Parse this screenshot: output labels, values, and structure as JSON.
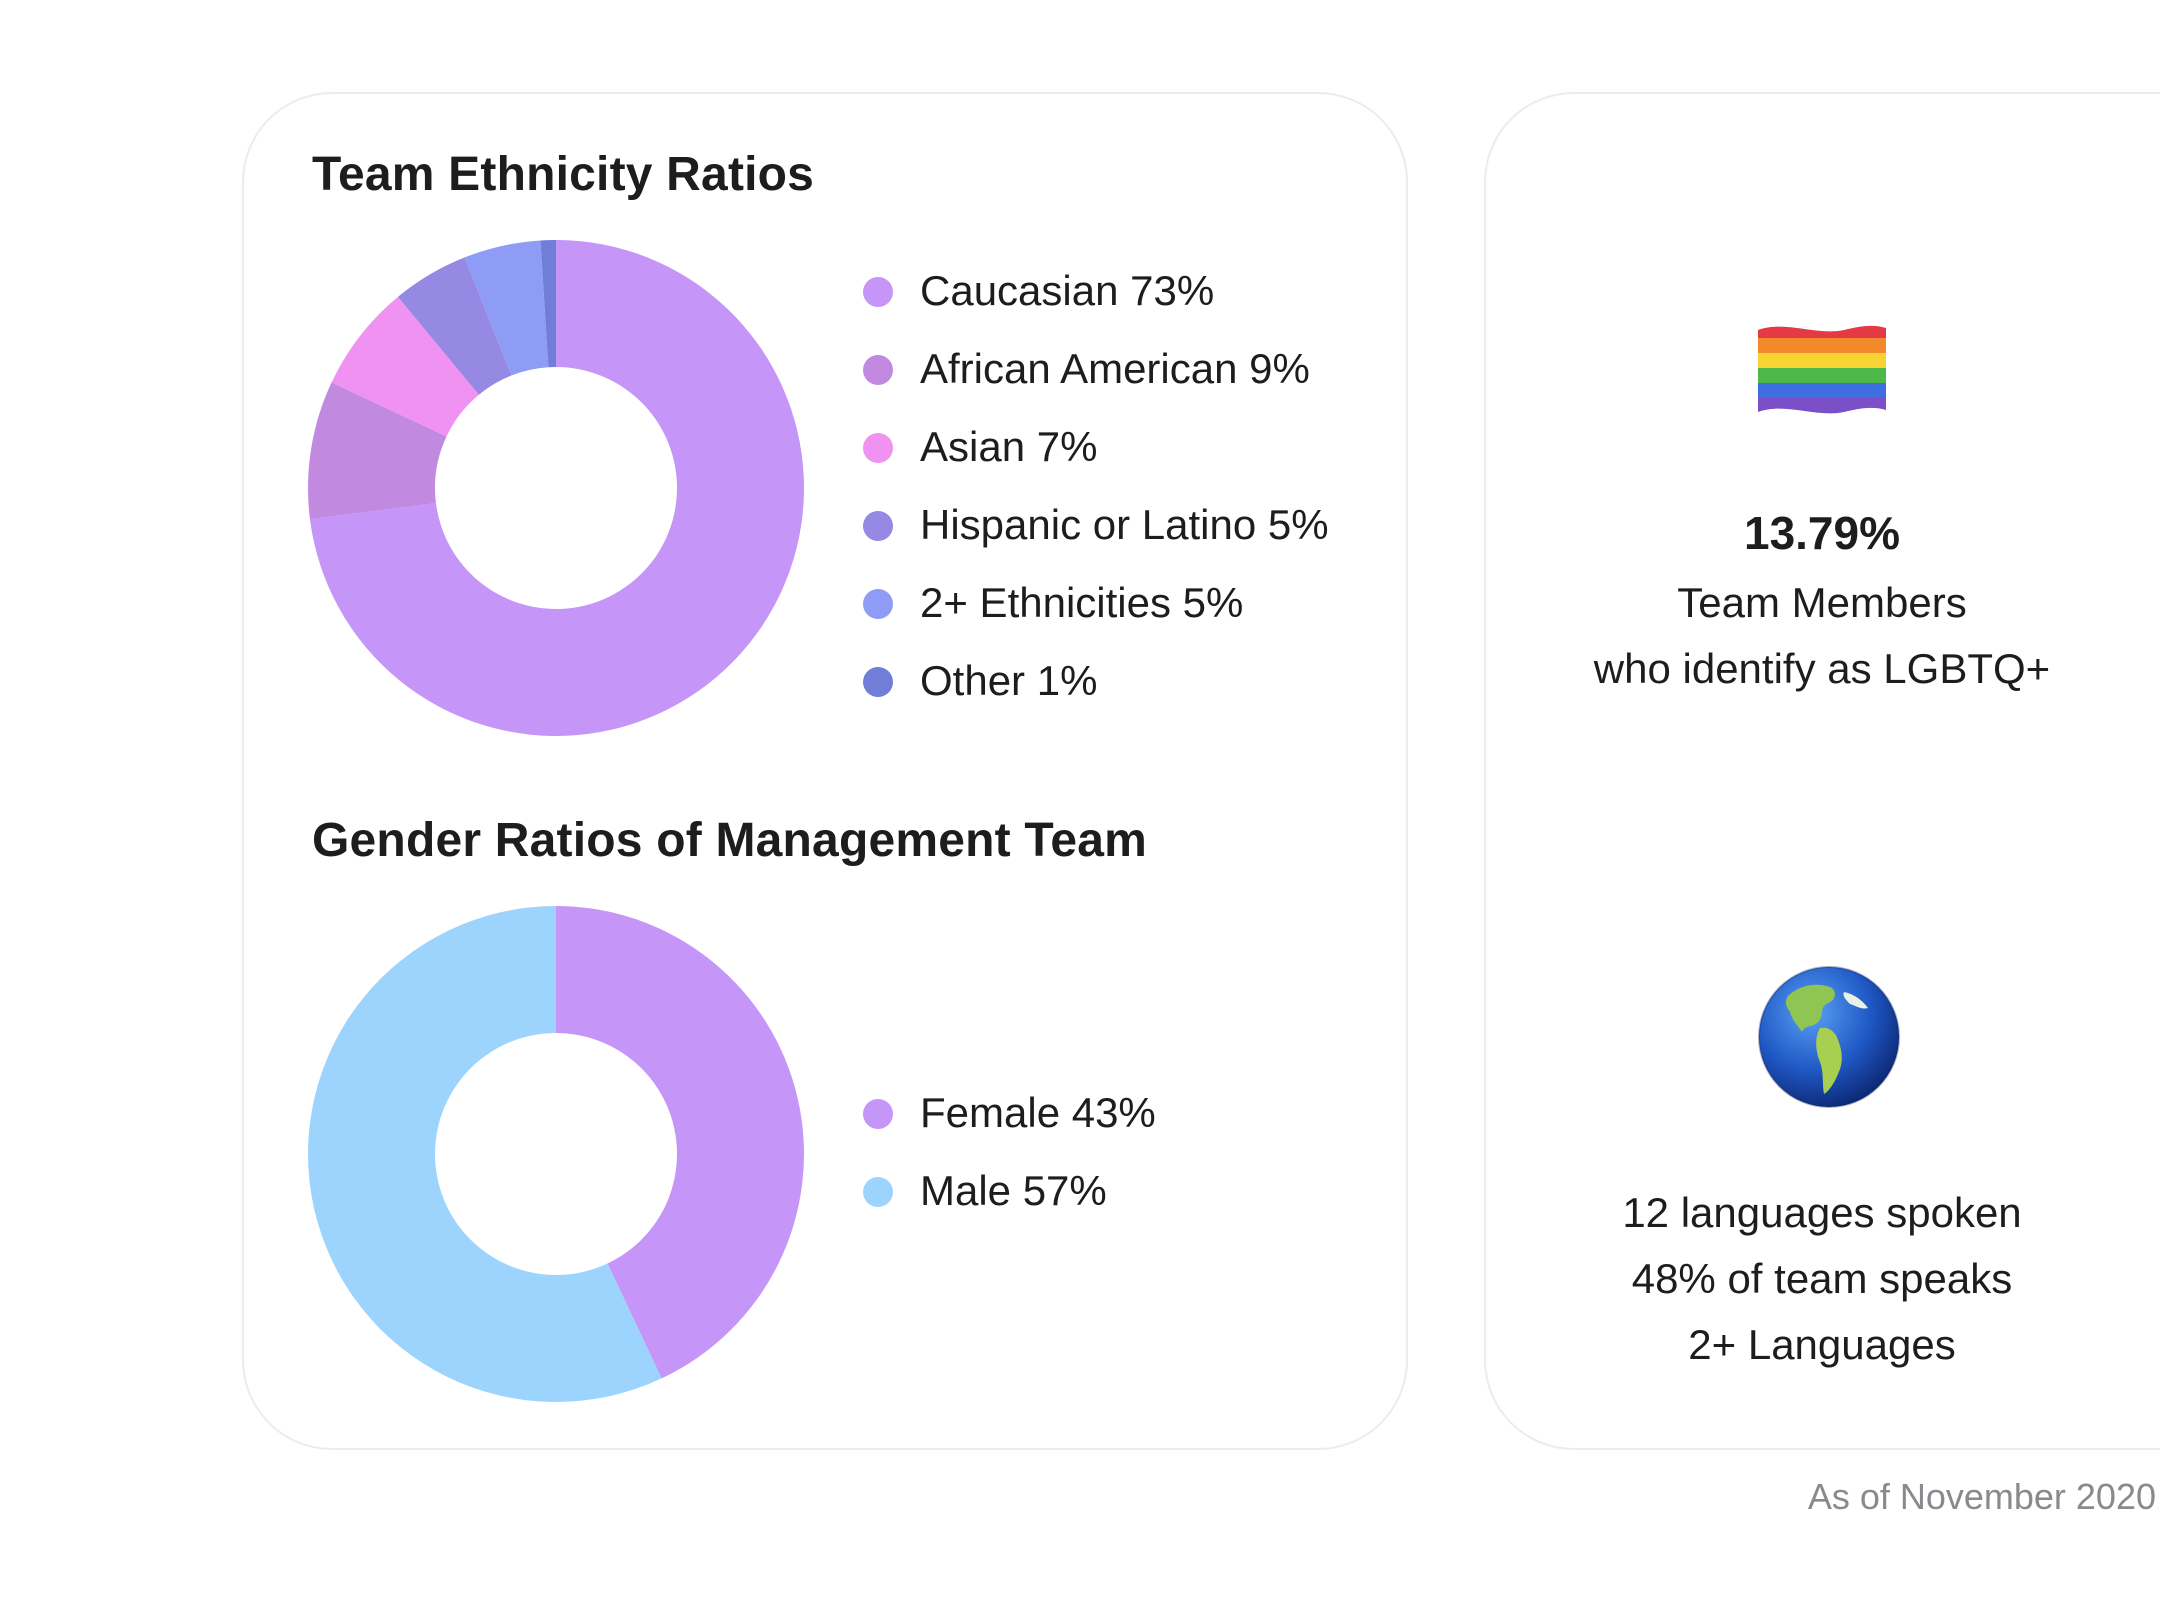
{
  "chart_data": [
    {
      "type": "pie",
      "title": "Team Ethnicity Ratios",
      "categories": [
        "Caucasian",
        "African American",
        "Asian",
        "Hispanic or Latino",
        "2+ Ethnicities",
        "Other"
      ],
      "values": [
        73,
        9,
        7,
        5,
        5,
        1
      ],
      "unit": "%",
      "colors": [
        "#c595f7",
        "#c18ae0",
        "#f092f1",
        "#9589e3",
        "#8e9cf6",
        "#717ed8"
      ],
      "legend_labels": [
        "Caucasian 73%",
        "African American 9%",
        "Asian 7%",
        "Hispanic or Latino 5%",
        "2+ Ethnicities 5%",
        "Other 1%"
      ],
      "legend_position": "right"
    },
    {
      "type": "pie",
      "title": "Gender Ratios of Management Team",
      "categories": [
        "Female",
        "Male"
      ],
      "values": [
        43,
        57
      ],
      "unit": "%",
      "colors": [
        "#c595f7",
        "#9dd4fd"
      ],
      "legend_labels": [
        "Female 43%",
        "Male 57%"
      ],
      "legend_position": "right"
    }
  ],
  "lgbtq": {
    "icon": "rainbow-flag-icon",
    "value": "13.79%",
    "line1": "Team Members",
    "line2": "who identify as LGBTQ+"
  },
  "languages": {
    "icon": "globe-americas-icon",
    "line1": "12 languages spoken",
    "line2": "48% of team speaks",
    "line3": "2+ Languages"
  },
  "footnote": "As of November 2020"
}
